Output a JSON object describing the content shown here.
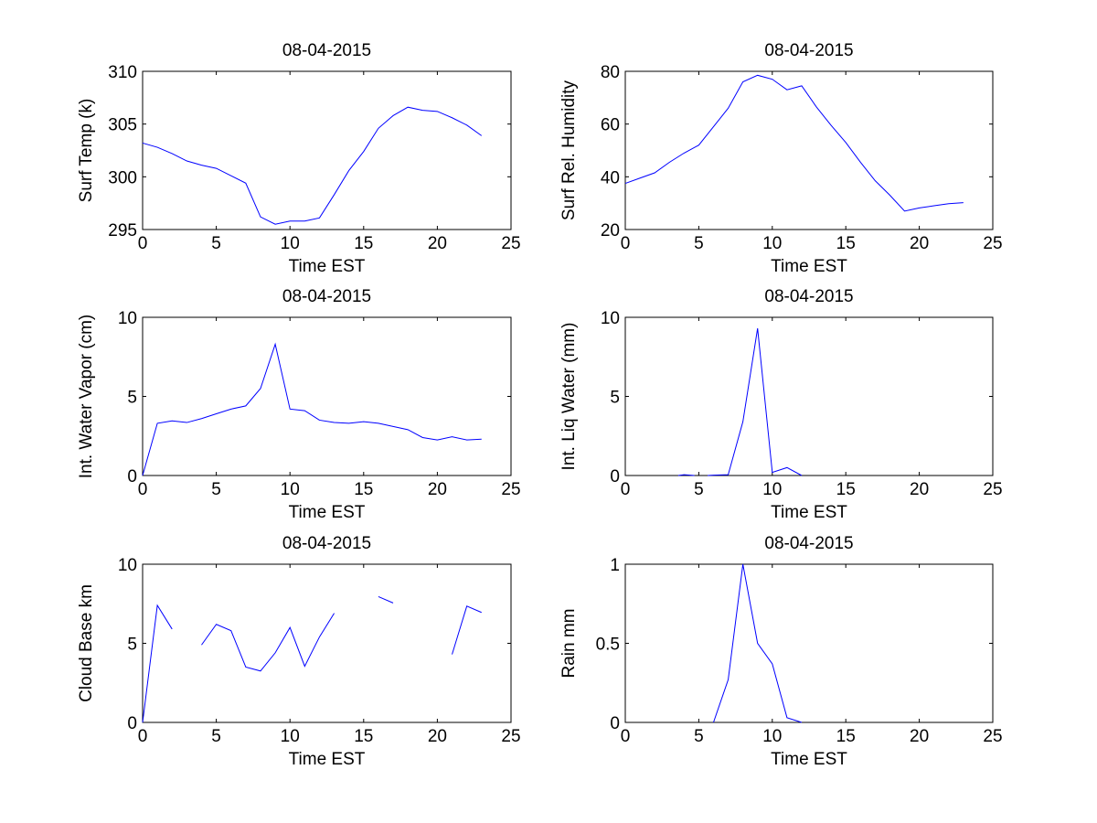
{
  "figure": {
    "line_color": "#0000ff",
    "axes_color": "#000000",
    "background": "#ffffff"
  },
  "chart_data": [
    {
      "type": "line",
      "title": "08-04-2015",
      "xlabel": "Time EST",
      "ylabel": "Surf Temp (k)",
      "xlim": [
        0,
        25
      ],
      "ylim": [
        295,
        310
      ],
      "xticks": [
        "0",
        "5",
        "10",
        "15",
        "20",
        "25"
      ],
      "yticks": [
        "295",
        "300",
        "305",
        "310"
      ],
      "grid": false,
      "series": [
        {
          "x": [
            0,
            1,
            2,
            3,
            4,
            5,
            6,
            7,
            8,
            9,
            10,
            11,
            12,
            13,
            14,
            15,
            16,
            17,
            18,
            19,
            20,
            21,
            22,
            23
          ],
          "values": [
            303.2,
            302.8,
            302.2,
            301.5,
            301.1,
            300.8,
            300.1,
            299.4,
            296.2,
            295.5,
            295.8,
            295.8,
            296.1,
            298.3,
            300.6,
            302.4,
            304.6,
            305.8,
            306.6,
            306.3,
            306.2,
            305.6,
            304.9,
            303.9
          ]
        }
      ]
    },
    {
      "type": "line",
      "title": "08-04-2015",
      "xlabel": "Time EST",
      "ylabel": "Surf Rel. Humidity",
      "xlim": [
        0,
        25
      ],
      "ylim": [
        20,
        80
      ],
      "xticks": [
        "0",
        "5",
        "10",
        "15",
        "20",
        "25"
      ],
      "yticks": [
        "20",
        "40",
        "60",
        "80"
      ],
      "grid": false,
      "series": [
        {
          "x": [
            0,
            1,
            2,
            3,
            4,
            5,
            6,
            7,
            8,
            9,
            10,
            11,
            12,
            13,
            14,
            15,
            16,
            17,
            18,
            19,
            20,
            21,
            22,
            23
          ],
          "values": [
            37.5,
            39.5,
            41.5,
            45.5,
            49,
            52,
            59,
            66,
            76,
            78.5,
            77,
            73,
            74.5,
            66.5,
            59.5,
            53,
            45.5,
            38.5,
            33,
            27,
            28.2,
            29,
            29.8,
            30.2
          ]
        }
      ]
    },
    {
      "type": "line",
      "title": "08-04-2015",
      "xlabel": "Time EST",
      "ylabel": "Int. Water Vapor (cm)",
      "xlim": [
        0,
        25
      ],
      "ylim": [
        0,
        10
      ],
      "xticks": [
        "0",
        "5",
        "10",
        "15",
        "20",
        "25"
      ],
      "yticks": [
        "0",
        "5",
        "10"
      ],
      "grid": false,
      "series": [
        {
          "x": [
            0,
            1,
            2,
            3,
            4,
            5,
            6,
            7,
            8,
            9,
            10,
            11,
            12,
            13,
            14,
            15,
            16,
            17,
            18,
            19,
            20,
            21,
            22,
            23
          ],
          "values": [
            0,
            3.3,
            3.45,
            3.35,
            3.6,
            3.9,
            4.2,
            4.4,
            5.5,
            8.3,
            4.2,
            4.1,
            3.5,
            3.35,
            3.3,
            3.4,
            3.3,
            3.1,
            2.9,
            2.4,
            2.25,
            2.45,
            2.25,
            2.3
          ]
        }
      ]
    },
    {
      "type": "line",
      "title": "08-04-2015",
      "xlabel": "Time EST",
      "ylabel": "Int. Liq Water (mm)",
      "xlim": [
        0,
        25
      ],
      "ylim": [
        0,
        10
      ],
      "xticks": [
        "0",
        "5",
        "10",
        "15",
        "20",
        "25"
      ],
      "yticks": [
        "0",
        "5",
        "10"
      ],
      "grid": false,
      "series": [
        {
          "x": [
            3.6,
            4,
            4.7
          ],
          "values": [
            0,
            0.05,
            0
          ]
        },
        {
          "x": [
            5.6,
            6,
            7,
            8,
            9,
            10,
            11,
            12
          ],
          "values": [
            0,
            0.02,
            0.05,
            3.4,
            9.3,
            0.2,
            0.5,
            0
          ]
        }
      ]
    },
    {
      "type": "line",
      "title": "08-04-2015",
      "xlabel": "Time EST",
      "ylabel": "Cloud Base km",
      "xlim": [
        0,
        25
      ],
      "ylim": [
        0,
        10
      ],
      "xticks": [
        "0",
        "5",
        "10",
        "15",
        "20",
        "25"
      ],
      "yticks": [
        "0",
        "5",
        "10"
      ],
      "grid": false,
      "series": [
        {
          "x": [
            0,
            1,
            2
          ],
          "values": [
            0,
            7.4,
            5.9
          ]
        },
        {
          "x": [
            4,
            5,
            6,
            7,
            8,
            9,
            10,
            11,
            12,
            13
          ],
          "values": [
            4.9,
            6.2,
            5.8,
            3.5,
            3.25,
            4.4,
            6,
            3.55,
            5.4,
            6.9
          ]
        },
        {
          "x": [
            16,
            17
          ],
          "values": [
            7.95,
            7.55
          ]
        },
        {
          "x": [
            21,
            22,
            23
          ],
          "values": [
            4.3,
            7.35,
            6.95
          ]
        }
      ]
    },
    {
      "type": "line",
      "title": "08-04-2015",
      "xlabel": "Time EST",
      "ylabel": "Rain mm",
      "xlim": [
        0,
        25
      ],
      "ylim": [
        0,
        1
      ],
      "xticks": [
        "0",
        "5",
        "10",
        "15",
        "20",
        "25"
      ],
      "yticks": [
        "0",
        "0.5",
        "1"
      ],
      "grid": false,
      "series": [
        {
          "x": [
            6,
            7,
            8,
            9,
            10,
            11,
            12
          ],
          "values": [
            0,
            0.27,
            1,
            0.5,
            0.37,
            0.03,
            0
          ]
        }
      ]
    }
  ]
}
